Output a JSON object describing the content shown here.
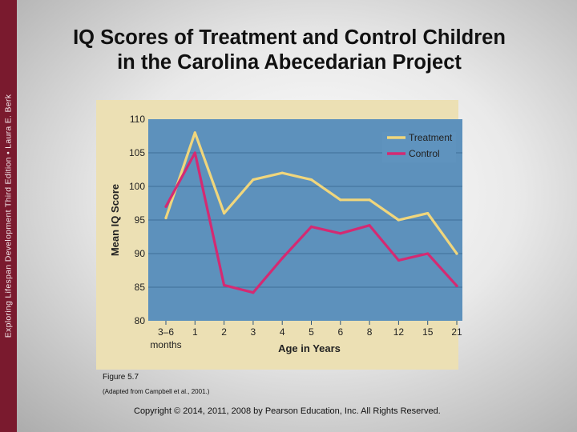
{
  "sidebar": {
    "text": "Exploring Lifespan Development Third Edition • Laura E. Berk"
  },
  "slide": {
    "title_line1": "IQ Scores of Treatment and Control Children",
    "title_line2": "in the Carolina Abecedarian Project",
    "caption": "Figure 5.7",
    "caption_sub": "(Adapted from Campbell et al., 2001.)",
    "copyright": "Copyright © 2014, 2011, 2008 by Pearson Education, Inc. All Rights Reserved."
  },
  "colors": {
    "plot_bg": "#5d91bc",
    "figure_bg": "#ece0b4",
    "treatment": "#f0d67c",
    "control": "#d42a72",
    "legend_bg": "#5f93be",
    "sidebar": "#7a1a2e"
  },
  "chart_data": {
    "type": "line",
    "title": "",
    "xlabel": "Age in Years",
    "ylabel": "Mean IQ Score",
    "categories": [
      "3–6",
      "1",
      "2",
      "3",
      "4",
      "5",
      "6",
      "8",
      "12",
      "15",
      "21"
    ],
    "category_sublabel": "months",
    "ylim": [
      80,
      110
    ],
    "yticks": [
      80,
      85,
      90,
      95,
      100,
      105,
      110
    ],
    "grid": true,
    "legend_position": "top-right",
    "series": [
      {
        "name": "Treatment",
        "values": [
          95.3,
          108,
          96,
          101,
          102,
          101,
          98,
          98,
          95,
          96,
          90
        ]
      },
      {
        "name": "Control",
        "values": [
          97,
          105,
          85.3,
          84.2,
          89.3,
          94,
          93,
          94.2,
          89,
          90,
          85.2
        ]
      }
    ]
  }
}
